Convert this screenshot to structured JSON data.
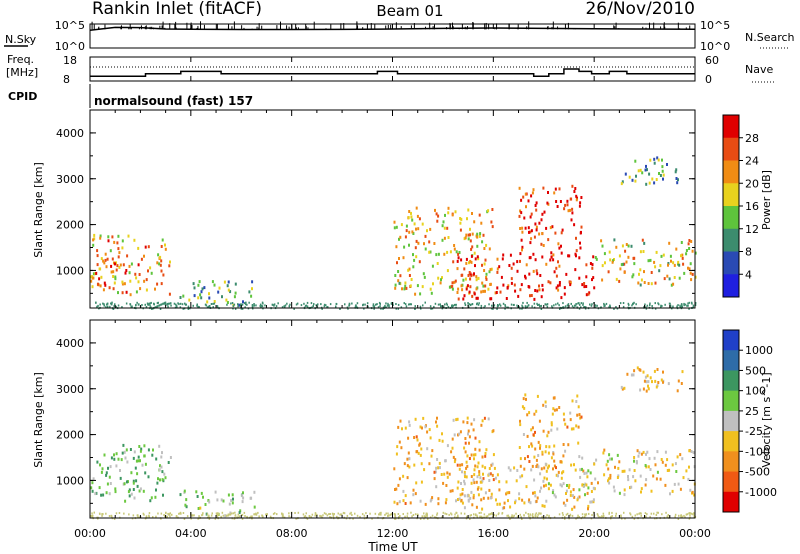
{
  "header": {
    "station": "Rankin Inlet (fitACF)",
    "beam": "Beam 01",
    "date": "26/Nov/2010"
  },
  "top_panels": {
    "nsky_label": "N.Sky",
    "nsky_ticks": [
      "10^5",
      "10^0"
    ],
    "nsearch_label": "N.Search",
    "nsearch_ticks": [
      "10^5",
      "10^0"
    ],
    "freq_label": "Freq.",
    "freq_unit": "[MHz]",
    "freq_ticks": [
      "18",
      "8"
    ],
    "nave_label": "Nave",
    "nave_ticks": [
      "60",
      "0"
    ],
    "cpid_label": "CPID",
    "cpid_value": "normalsound (fast) 157"
  },
  "axes": {
    "xlabel": "Time UT",
    "x_ticks": [
      "00:00",
      "04:00",
      "08:00",
      "12:00",
      "16:00",
      "20:00",
      "00:00"
    ],
    "ylabel": "Slant Range [km]",
    "y_ticks": [
      "1000",
      "2000",
      "3000",
      "4000"
    ]
  },
  "power_bar": {
    "label": "Power [dB]",
    "ticks": [
      "4",
      "8",
      "12",
      "16",
      "20",
      "24",
      "28"
    ],
    "colors": [
      "#1f1fe0",
      "#2a4ab4",
      "#3c8c6e",
      "#5ec43c",
      "#e8d21e",
      "#f08c14",
      "#e84c14",
      "#e00000"
    ]
  },
  "velocity_bar": {
    "label": "Velocity [m s^-1]",
    "ticks": [
      "1000",
      "500",
      "100",
      "25",
      "-25",
      "-100",
      "-500",
      "-1000"
    ],
    "colors": [
      "#2040c8",
      "#2e6ca8",
      "#3c9660",
      "#6cc840",
      "#c0c0c0",
      "#f0c020",
      "#f0901e",
      "#f05a14",
      "#e00000"
    ]
  },
  "chart_data": [
    {
      "type": "line",
      "title": "N.Sky / N.Search",
      "x_range_hours": [
        0,
        24
      ],
      "series": [
        {
          "name": "N.Sky",
          "x": [
            0,
            1,
            2,
            3,
            4,
            6,
            8,
            10,
            12,
            14,
            16,
            18,
            20,
            22,
            24
          ],
          "values": [
            5000,
            20000,
            18000,
            9000,
            8000,
            7000,
            7000,
            7500,
            9000,
            12000,
            15000,
            12000,
            10000,
            9000,
            8000
          ]
        },
        {
          "name": "N.Search",
          "x": [
            0,
            24
          ],
          "values": [
            1,
            1
          ]
        }
      ]
    },
    {
      "type": "line",
      "title": "Freq. [MHz] / Nave",
      "y_range": [
        8,
        18
      ],
      "series": [
        {
          "name": "Freq.",
          "x": [
            0,
            2.2,
            2.2,
            3.6,
            3.6,
            5.2,
            5.2,
            11.4,
            11.4,
            12.2,
            12.2,
            17.6,
            17.6,
            18.2,
            18.2,
            18.8,
            18.8,
            19.4,
            19.4,
            19.9,
            19.9,
            20.6,
            20.6,
            21.3,
            21.3,
            24
          ],
          "values": [
            10,
            10,
            11,
            11,
            12,
            12,
            11,
            11,
            12,
            12,
            11,
            11,
            10,
            10,
            11,
            11,
            13,
            13,
            12,
            12,
            11,
            11,
            12,
            12,
            11,
            11
          ]
        }
      ]
    },
    {
      "type": "heatmap",
      "title": "Power [dB]",
      "xlabel": "Time UT",
      "ylabel": "Slant Range [km]",
      "x_range_hours": [
        0,
        24
      ],
      "y_range_km": [
        180,
        4500
      ],
      "colorbar_range": [
        0,
        30
      ],
      "regions": [
        {
          "t": [
            0,
            3.2
          ],
          "r": [
            500,
            1800
          ],
          "db": 20
        },
        {
          "t": [
            0,
            1
          ],
          "r": [
            700,
            1300
          ],
          "db": 27
        },
        {
          "t": [
            3.5,
            6.5
          ],
          "r": [
            250,
            800
          ],
          "db": 12
        },
        {
          "t": [
            12,
            16
          ],
          "r": [
            500,
            2400
          ],
          "db": 18
        },
        {
          "t": [
            14.5,
            20
          ],
          "r": [
            400,
            1400
          ],
          "db": 28
        },
        {
          "t": [
            17,
            19.5
          ],
          "r": [
            1300,
            2900
          ],
          "db": 27
        },
        {
          "t": [
            20,
            24
          ],
          "r": [
            700,
            1700
          ],
          "db": 17
        },
        {
          "t": [
            21,
            23.5
          ],
          "r": [
            2900,
            3500
          ],
          "db": 11
        }
      ]
    },
    {
      "type": "heatmap",
      "title": "Velocity [m s-1]",
      "xlabel": "Time UT",
      "ylabel": "Slant Range [km]",
      "x_range_hours": [
        0,
        24
      ],
      "y_range_km": [
        180,
        4500
      ],
      "colorbar_range": [
        -1000,
        1000
      ],
      "regions": [
        {
          "t": [
            0,
            3.2
          ],
          "r": [
            500,
            1800
          ],
          "v": 250
        },
        {
          "t": [
            3.5,
            6.5
          ],
          "r": [
            250,
            800
          ],
          "v": 120
        },
        {
          "t": [
            12,
            16
          ],
          "r": [
            500,
            2400
          ],
          "v": -300
        },
        {
          "t": [
            14.5,
            20
          ],
          "r": [
            400,
            1400
          ],
          "v": -200
        },
        {
          "t": [
            17,
            19.5
          ],
          "r": [
            1300,
            2900
          ],
          "v": -350
        },
        {
          "t": [
            18,
            20
          ],
          "r": [
            700,
            1300
          ],
          "v": 0
        },
        {
          "t": [
            20,
            24
          ],
          "r": [
            700,
            1700
          ],
          "v": -150
        },
        {
          "t": [
            21,
            23.5
          ],
          "r": [
            2900,
            3500
          ],
          "v": -250
        }
      ]
    }
  ]
}
